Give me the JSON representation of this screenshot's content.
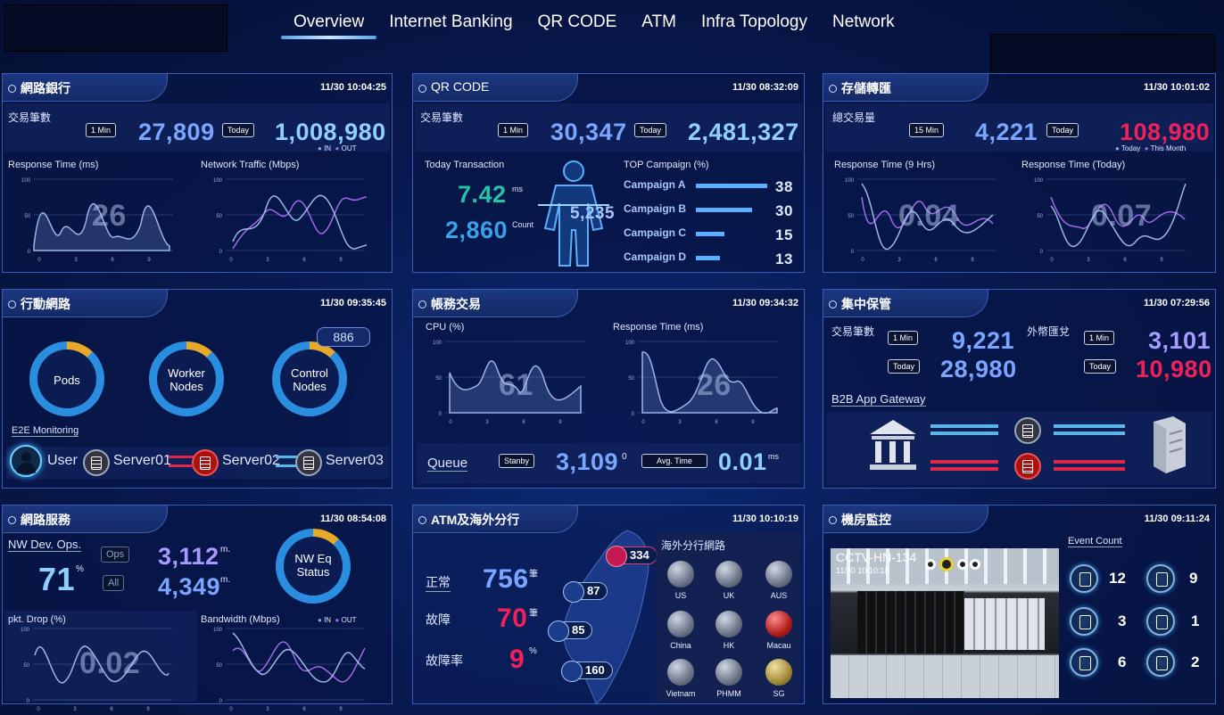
{
  "nav": {
    "tabs": [
      "Overview",
      "Internet Banking",
      "QR CODE",
      "ATM",
      "Infra Topology",
      "Network"
    ]
  },
  "p1": {
    "title": "網路銀行",
    "time": "11/30 10:04:25",
    "txn_label": "交易筆數",
    "tag1": "1 Min",
    "v1": "27,809",
    "tag2": "Today",
    "v2": "1,008,980",
    "leg_in": "IN",
    "leg_out": "OUT",
    "rt_label": "Response Time (ms)",
    "rt_value": "26",
    "nt_label": "Network Traffic (Mbps)"
  },
  "p2": {
    "title": "QR CODE",
    "time": "11/30 08:32:09",
    "txn_label": "交易筆數",
    "tag1": "1 Min",
    "v1": "30,347",
    "tag2": "Today",
    "v2": "2,481,327",
    "today_txn": "Today Transaction",
    "ms_value": "7.42",
    "ms_unit": "ms",
    "count_value": "2,860",
    "count_unit": "Count",
    "person_value": "5,235",
    "top_label": "TOP Campaign (%)",
    "campaigns": [
      {
        "name": "Campaign A",
        "value": "38",
        "pct": 38
      },
      {
        "name": "Campaign B",
        "value": "30",
        "pct": 30
      },
      {
        "name": "Campaign C",
        "value": "15",
        "pct": 15
      },
      {
        "name": "Campaign D",
        "value": "13",
        "pct": 13
      }
    ]
  },
  "p3": {
    "title": "存儲轉匯",
    "time": "11/30 10:01:02",
    "txn_label": "總交易量",
    "tag1": "15 Min",
    "v1": "4,221",
    "tag2": "Today",
    "v2": "108,980",
    "leg_today": "Today",
    "leg_month": "This Month",
    "rt9_label": "Response Time (9 Hrs)",
    "rt9_value": "0.04",
    "rtt_label": "Response Time (Today)",
    "rtt_value": "0.07"
  },
  "p4": {
    "title": "行動網路",
    "time": "11/30 09:35:45",
    "ring1": "Pods",
    "ring2a": "Worker",
    "ring2b": "Nodes",
    "ring3a": "Control",
    "ring3b": "Nodes",
    "badge": "886",
    "e2e": "E2E Monitoring",
    "user": "User",
    "s1": "Server01",
    "s2": "Server02",
    "s3": "Server03"
  },
  "p5": {
    "title": "帳務交易",
    "time": "11/30 09:34:32",
    "cpu_label": "CPU (%)",
    "cpu_value": "61",
    "rt_label": "Response Time (ms)",
    "rt_value": "26",
    "queue": "Queue",
    "standby": "Stanby",
    "qv": "3,109",
    "qu": "0",
    "avg": "Avg. Time",
    "av": "0.01",
    "au": "ms"
  },
  "p6": {
    "title": "集中保管",
    "time": "11/30 07:29:56",
    "txn_label": "交易筆數",
    "tag1": "1 Min",
    "v1": "9,221",
    "tag2": "Today",
    "v2": "28,980",
    "fx_label": "外幣匯兌",
    "tag3": "1 Min",
    "v3": "3,101",
    "tag4": "Today",
    "v4": "10,980",
    "b2b": "B2B App Gateway"
  },
  "p7": {
    "title": "網路服務",
    "time": "11/30 08:54:08",
    "nwops": "NW Dev. Ops.",
    "pct_value": "71",
    "pct_unit": "%",
    "ops": "Ops",
    "all": "All",
    "v1": "3,112",
    "u1": "m.",
    "v2": "4,349",
    "u2": "m.",
    "ring_a": "NW Eq",
    "ring_b": "Status",
    "pkt_label": "pkt. Drop (%)",
    "pkt_value": "0.02",
    "bw_label": "Bandwidth (Mbps)",
    "leg_in": "IN",
    "leg_out": "OUT"
  },
  "p8": {
    "title": "ATM及海外分行",
    "time": "11/30 10:10:19",
    "normal": "正常",
    "nv": "756",
    "nu": "筆",
    "fault": "故障",
    "fv": "70",
    "fu": "筆",
    "rate": "故障率",
    "rv": "9",
    "ru": "%",
    "pins": [
      "334",
      "87",
      "85",
      "160"
    ],
    "overseas": "海外分行網路",
    "globes": [
      "US",
      "UK",
      "AUS",
      "China",
      "HK",
      "Macau",
      "Vietnam",
      "PHMM",
      "SG"
    ]
  },
  "p9": {
    "title": "機房監控",
    "time": "11/30 09:11:24",
    "cam": "CCTV-HN-134",
    "cam_time": "11/30 10:10:18",
    "event": "Event Count",
    "events": [
      "12",
      "9",
      "3",
      "1",
      "6",
      "2"
    ]
  },
  "axis": {
    "y": [
      "100",
      "50",
      "0"
    ],
    "x": [
      "0",
      "3",
      "6",
      "9"
    ]
  },
  "colors": {
    "accent": "#7aa6ff",
    "red": "#f0205a",
    "purple": "#a89bff"
  }
}
